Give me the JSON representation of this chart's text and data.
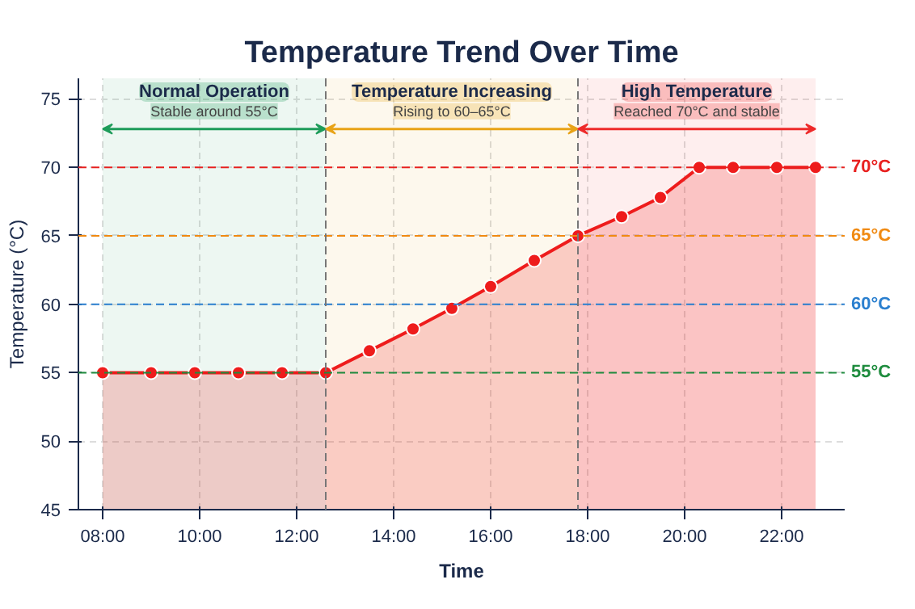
{
  "chart_data": {
    "type": "area",
    "title": "Temperature Trend Over Time",
    "xlabel": "Time",
    "ylabel": "Temperature (°C)",
    "x": [
      8.0,
      9.0,
      9.9,
      10.8,
      11.7,
      12.6,
      13.5,
      14.4,
      15.2,
      16.0,
      16.9,
      17.8,
      18.7,
      19.5,
      20.3,
      21.0,
      21.9,
      22.7
    ],
    "series": [
      {
        "color": "#ee1c1c",
        "values": [
          55,
          55,
          55,
          55,
          55,
          55,
          56.6,
          58.2,
          59.7,
          61.3,
          63.2,
          65,
          66.4,
          67.8,
          70,
          70,
          70,
          70
        ]
      }
    ],
    "xlim": [
      7.5,
      23.3
    ],
    "ylim": [
      45,
      76.5
    ],
    "xticks": [
      {
        "value": 8,
        "label": "08:00"
      },
      {
        "value": 10,
        "label": "10:00"
      },
      {
        "value": 12,
        "label": "12:00"
      },
      {
        "value": 14,
        "label": "14:00"
      },
      {
        "value": 16,
        "label": "16:00"
      },
      {
        "value": 18,
        "label": "18:00"
      },
      {
        "value": 20,
        "label": "20:00"
      },
      {
        "value": 22,
        "label": "22:00"
      }
    ],
    "yticks": [
      45,
      50,
      55,
      60,
      65,
      70,
      75
    ],
    "grid": true,
    "marker": "circle",
    "line_style": "solid",
    "ref_lines": [
      {
        "axis": "y",
        "value": 55,
        "label": "55°C",
        "color": "#1e8c3e",
        "line_style": "dashed"
      },
      {
        "axis": "y",
        "value": 60,
        "label": "60°C",
        "color": "#2a7fcf",
        "line_style": "dashed"
      },
      {
        "axis": "y",
        "value": 65,
        "label": "65°C",
        "color": "#f08a12",
        "line_style": "dashed"
      },
      {
        "axis": "y",
        "value": 70,
        "label": "70°C",
        "color": "#e8201f",
        "line_style": "dashed"
      },
      {
        "axis": "x",
        "value": 12.6,
        "color": "#777777",
        "line_style": "dashed"
      },
      {
        "axis": "x",
        "value": 17.8,
        "color": "#777777",
        "line_style": "dashed"
      }
    ],
    "bands": [
      {
        "axis": "x",
        "from": 8.0,
        "to": 12.6,
        "label": "Normal Operation",
        "color": "#1e9c5a"
      },
      {
        "axis": "x",
        "from": 12.6,
        "to": 17.8,
        "label": "Temperature Increasing",
        "color": "#e8a317"
      },
      {
        "axis": "x",
        "from": 17.8,
        "to": 22.7,
        "label": "High Temperature",
        "color": "#ee2a2a"
      }
    ],
    "annotations": [
      "Stable around 55°C",
      "Rising to 60–65°C",
      "Reached 70°C and stable"
    ]
  }
}
